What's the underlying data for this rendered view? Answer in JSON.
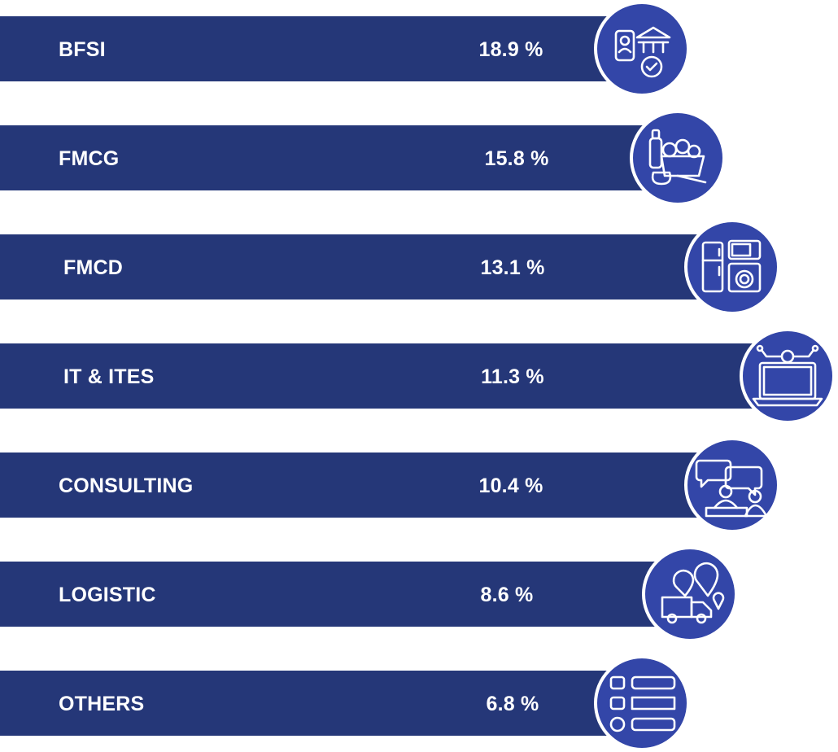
{
  "colors": {
    "bar": "#253778",
    "circle": "#3346a8",
    "ring": "#ffffff",
    "text": "#ffffff"
  },
  "chart_data": {
    "type": "bar",
    "orientation": "horizontal",
    "categories": [
      "BFSI",
      "FMCG",
      "FMCD",
      "IT & ITES",
      "CONSULTING",
      "LOGISTIC",
      "OTHERS"
    ],
    "values": [
      18.9,
      15.8,
      13.1,
      11.3,
      10.4,
      8.6,
      6.8
    ],
    "value_labels": [
      "18.9 %",
      "15.8 %",
      "13.1 %",
      "11.3 %",
      "10.4 %",
      "8.6 %",
      "6.8 %"
    ],
    "icons": [
      "bank-document-icon",
      "groceries-icon",
      "appliances-icon",
      "laptop-icon",
      "consulting-chat-icon",
      "delivery-truck-icon",
      "list-icon"
    ],
    "unit": "%",
    "title": "",
    "xlabel": "",
    "ylabel": "",
    "grid": false,
    "legend": "none"
  }
}
